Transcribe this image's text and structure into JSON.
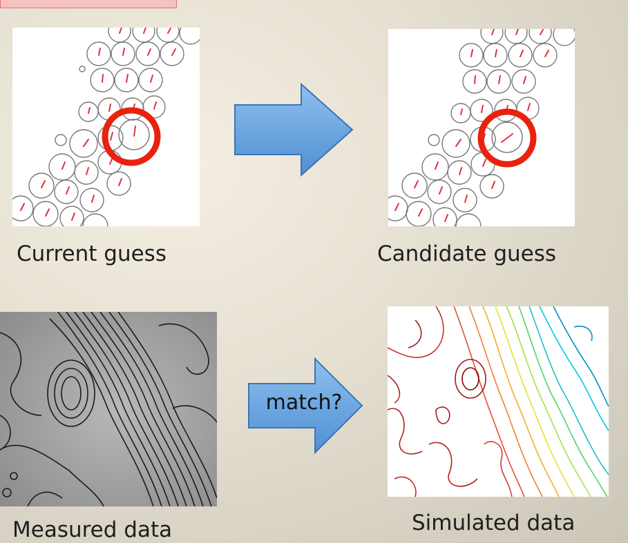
{
  "diagram": {
    "captions": {
      "current_guess": "Current guess",
      "candidate_guess": "Candidate guess",
      "measured_data": "Measured data",
      "simulated_data": "Simulated data"
    },
    "match_label": "match?",
    "colors": {
      "highlight_ring": "#e8220e",
      "arrow_fill": "#5b9bdc",
      "arrow_stroke": "#3f73b4",
      "tick_marks": "#e0303a",
      "top_box_fill": "#f6c2c0"
    }
  }
}
